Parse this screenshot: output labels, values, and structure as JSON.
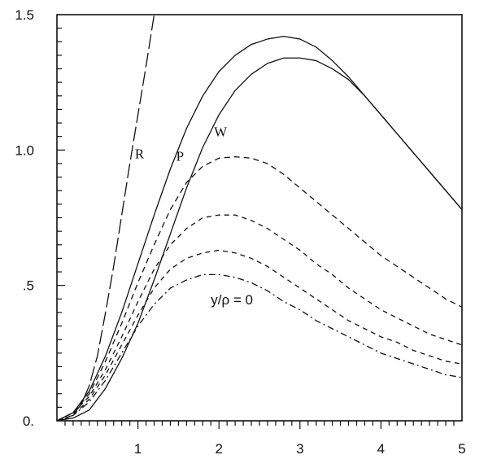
{
  "chart_data": {
    "type": "line",
    "title": "",
    "xlabel": "",
    "ylabel": "",
    "xlim": [
      0,
      5
    ],
    "ylim": [
      0,
      1.5
    ],
    "x_ticks": [
      {
        "value": 1,
        "label": "1"
      },
      {
        "value": 2,
        "label": "2"
      },
      {
        "value": 3,
        "label": "3"
      },
      {
        "value": 4,
        "label": "4"
      },
      {
        "value": 5,
        "label": "5"
      }
    ],
    "y_ticks": [
      {
        "value": 0,
        "label": "0."
      },
      {
        "value": 0.5,
        "label": ".5"
      },
      {
        "value": 1.0,
        "label": "1.0"
      },
      {
        "value": 1.5,
        "label": "1.5"
      }
    ],
    "grid": false,
    "legend": "none",
    "series": [
      {
        "name": "R",
        "style": "long-dash",
        "x": [
          0,
          0.1,
          0.2,
          0.3,
          0.4,
          0.5,
          0.6,
          0.7,
          0.8,
          0.9,
          1.0,
          1.1,
          1.2
        ],
        "y": [
          0,
          0.006,
          0.024,
          0.06,
          0.13,
          0.24,
          0.4,
          0.57,
          0.76,
          0.95,
          1.13,
          1.31,
          1.5
        ]
      },
      {
        "name": "P",
        "style": "solid",
        "x": [
          0,
          0.2,
          0.4,
          0.6,
          0.8,
          1.0,
          1.2,
          1.4,
          1.6,
          1.8,
          2.0,
          2.2,
          2.4,
          2.6,
          2.8,
          3.0,
          3.2,
          3.4,
          3.6,
          3.8,
          4.0,
          4.2,
          4.4,
          4.6,
          4.8,
          5.0
        ],
        "y": [
          0,
          0.03,
          0.11,
          0.24,
          0.4,
          0.58,
          0.76,
          0.93,
          1.08,
          1.2,
          1.29,
          1.35,
          1.39,
          1.41,
          1.42,
          1.41,
          1.38,
          1.33,
          1.27,
          1.2,
          1.13,
          1.06,
          0.99,
          0.92,
          0.85,
          0.78
        ]
      },
      {
        "name": "W",
        "style": "solid",
        "x": [
          0,
          0.2,
          0.4,
          0.6,
          0.8,
          1.0,
          1.2,
          1.4,
          1.6,
          1.8,
          2.0,
          2.2,
          2.4,
          2.6,
          2.8,
          3.0,
          3.2,
          3.4,
          3.6,
          3.8,
          4.0,
          4.2,
          4.4,
          4.6,
          4.8,
          5.0
        ],
        "y": [
          0,
          0.01,
          0.04,
          0.12,
          0.23,
          0.36,
          0.52,
          0.69,
          0.86,
          1.01,
          1.13,
          1.22,
          1.28,
          1.32,
          1.34,
          1.34,
          1.33,
          1.3,
          1.26,
          1.2,
          1.13,
          1.06,
          0.99,
          0.92,
          0.85,
          0.78
        ]
      },
      {
        "name": "",
        "style": "short-dash",
        "x": [
          0,
          0.2,
          0.4,
          0.6,
          0.8,
          1.0,
          1.2,
          1.4,
          1.6,
          1.8,
          2.0,
          2.2,
          2.4,
          2.6,
          2.8,
          3.0,
          3.2,
          3.4,
          3.6,
          3.8,
          4.0,
          4.2,
          4.4,
          4.6,
          4.8,
          5.0
        ],
        "y": [
          0,
          0.03,
          0.1,
          0.22,
          0.36,
          0.51,
          0.65,
          0.78,
          0.88,
          0.94,
          0.97,
          0.975,
          0.97,
          0.95,
          0.91,
          0.86,
          0.81,
          0.76,
          0.71,
          0.66,
          0.61,
          0.57,
          0.53,
          0.49,
          0.45,
          0.42
        ]
      },
      {
        "name": "",
        "style": "dash",
        "x": [
          0,
          0.2,
          0.4,
          0.6,
          0.8,
          1.0,
          1.2,
          1.4,
          1.6,
          1.8,
          2.0,
          2.2,
          2.4,
          2.6,
          2.8,
          3.0,
          3.2,
          3.4,
          3.6,
          3.8,
          4.0,
          4.2,
          4.4,
          4.6,
          4.8,
          5.0
        ],
        "y": [
          0,
          0.03,
          0.09,
          0.19,
          0.31,
          0.44,
          0.56,
          0.65,
          0.71,
          0.75,
          0.76,
          0.76,
          0.74,
          0.71,
          0.67,
          0.63,
          0.58,
          0.54,
          0.49,
          0.45,
          0.41,
          0.38,
          0.35,
          0.32,
          0.3,
          0.28
        ]
      },
      {
        "name": "",
        "style": "dash",
        "x": [
          0,
          0.2,
          0.4,
          0.6,
          0.8,
          1.0,
          1.2,
          1.4,
          1.6,
          1.8,
          2.0,
          2.2,
          2.4,
          2.6,
          2.8,
          3.0,
          3.2,
          3.4,
          3.6,
          3.8,
          4.0,
          4.2,
          4.4,
          4.6,
          4.8,
          5.0
        ],
        "y": [
          0,
          0.02,
          0.08,
          0.17,
          0.28,
          0.39,
          0.49,
          0.56,
          0.6,
          0.62,
          0.63,
          0.62,
          0.6,
          0.57,
          0.53,
          0.49,
          0.45,
          0.41,
          0.37,
          0.34,
          0.31,
          0.29,
          0.26,
          0.24,
          0.22,
          0.21
        ]
      },
      {
        "name": "",
        "style": "dash-dot",
        "x": [
          0,
          0.2,
          0.4,
          0.6,
          0.8,
          1.0,
          1.2,
          1.4,
          1.6,
          1.8,
          2.0,
          2.2,
          2.4,
          2.6,
          2.8,
          3.0,
          3.2,
          3.4,
          3.6,
          3.8,
          4.0,
          4.2,
          4.4,
          4.6,
          4.8,
          5.0
        ],
        "y": [
          0,
          0.02,
          0.07,
          0.15,
          0.25,
          0.35,
          0.43,
          0.49,
          0.52,
          0.54,
          0.54,
          0.53,
          0.51,
          0.48,
          0.44,
          0.41,
          0.37,
          0.34,
          0.31,
          0.28,
          0.25,
          0.23,
          0.21,
          0.19,
          0.17,
          0.16
        ]
      }
    ],
    "annotations": [
      {
        "text": "R",
        "x": 1.02,
        "y": 0.97,
        "kind": "curve"
      },
      {
        "text": "P",
        "x": 1.52,
        "y": 0.96,
        "kind": "curve"
      },
      {
        "text": "W",
        "x": 2.02,
        "y": 1.05,
        "kind": "curve"
      },
      {
        "text": "y/ρ = 0",
        "x": 1.9,
        "y": 0.43,
        "kind": "text"
      }
    ]
  }
}
